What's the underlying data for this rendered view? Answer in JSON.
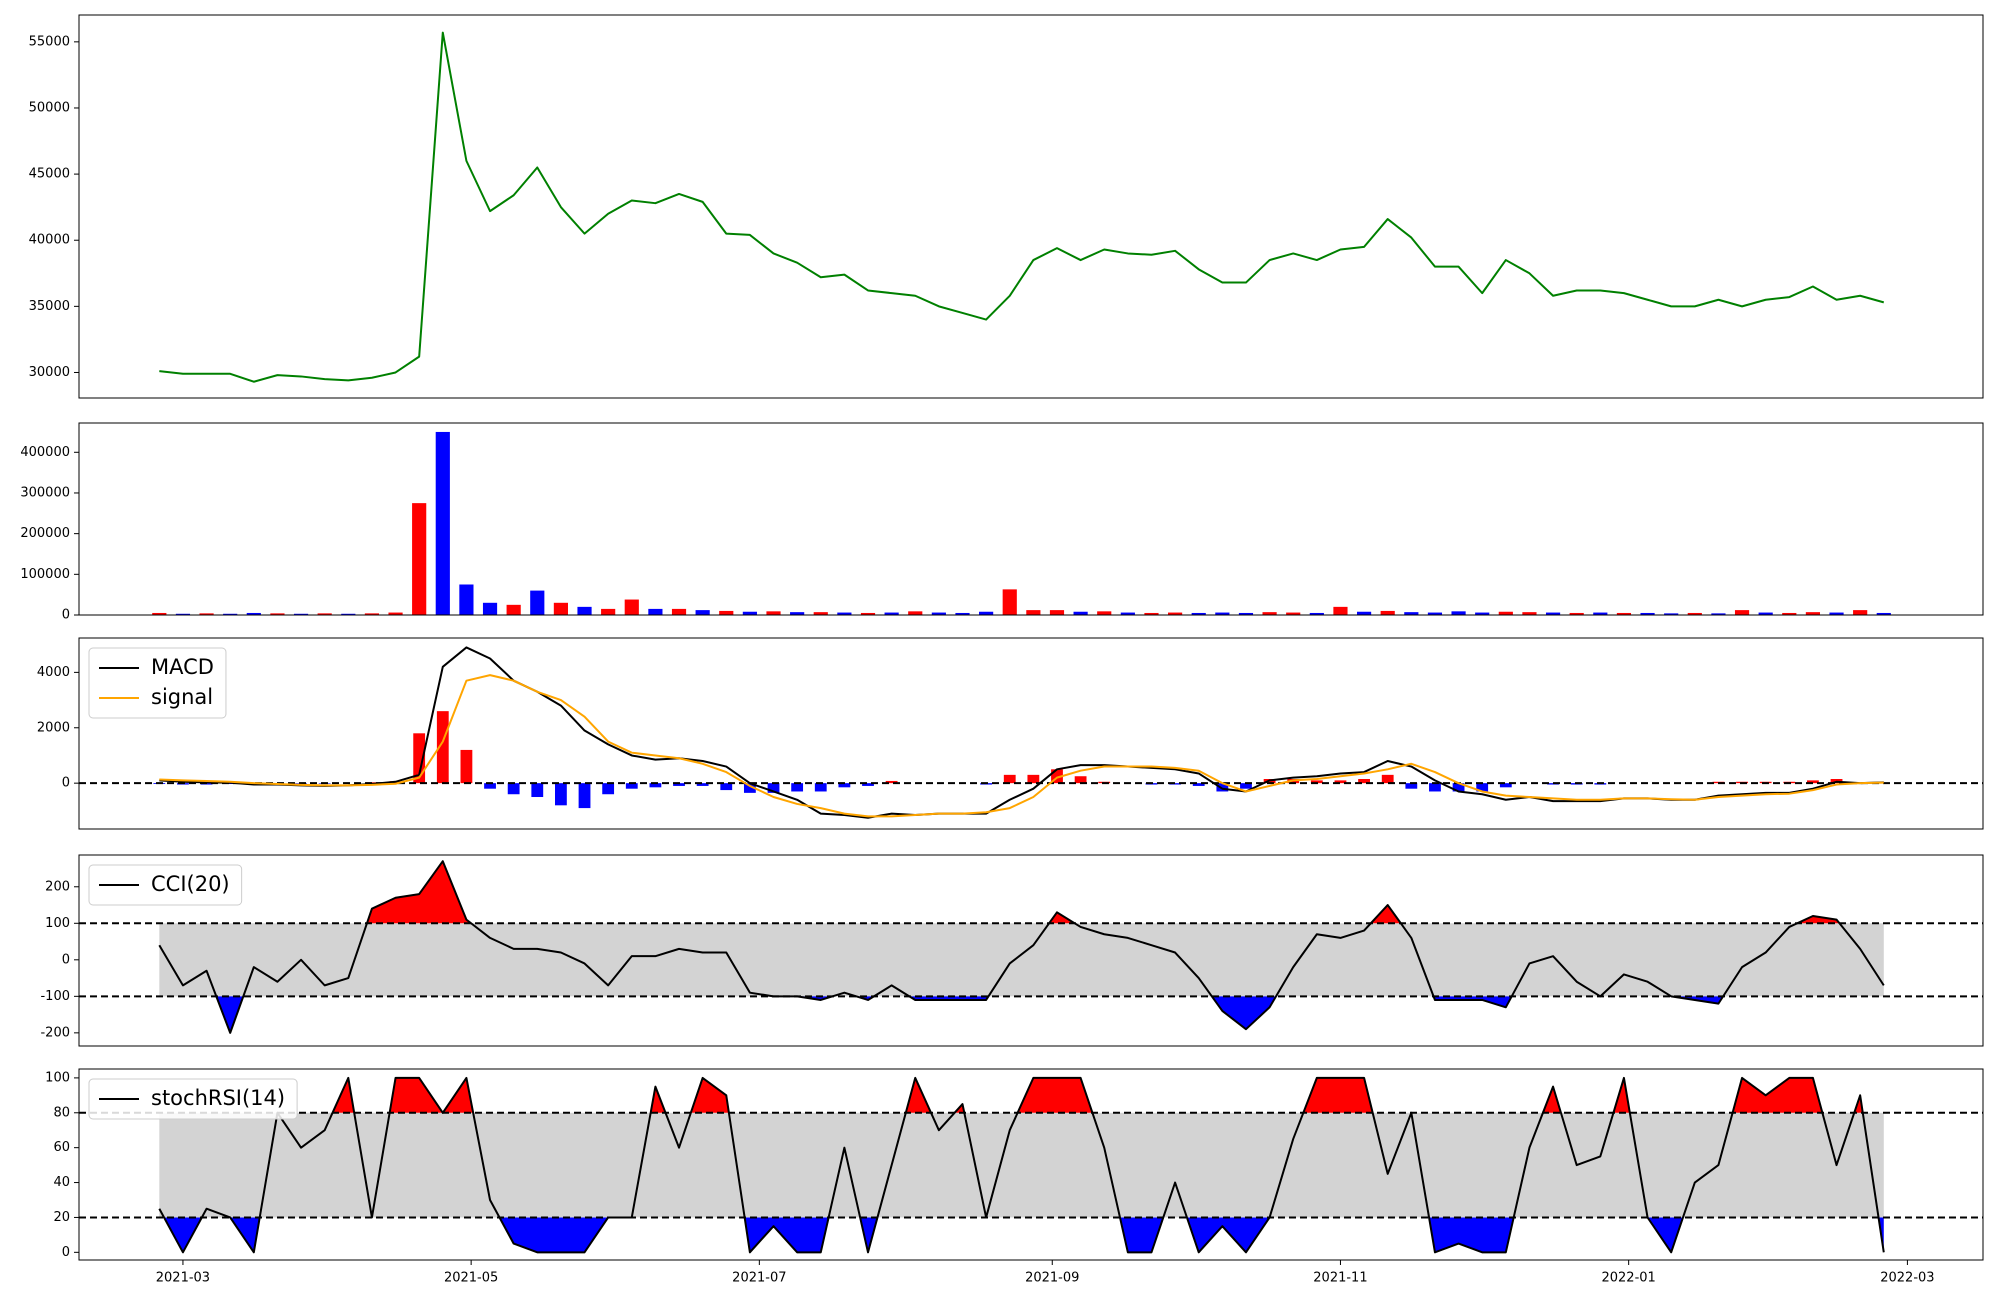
{
  "chart_data": [
    {
      "type": "line",
      "series": [
        {
          "color": "green",
          "values": [
            30100,
            29900,
            29900,
            29900,
            29300,
            29800,
            29700,
            29500,
            29400,
            29600,
            30000,
            31200,
            55700,
            46000,
            42200,
            43400,
            45500,
            42500,
            40500,
            42000,
            43000,
            42800,
            43500,
            42900,
            40500,
            40400,
            39000,
            38300,
            37200,
            37400,
            36200,
            36000,
            35800,
            35000,
            34500,
            34000,
            35800,
            38500,
            39400,
            38500,
            39300,
            39000,
            38900,
            39200,
            37800,
            36800,
            36800,
            38500,
            39000,
            38500,
            39300,
            39500,
            41600,
            40200,
            38000,
            38000,
            36000,
            38500,
            37500,
            35800,
            36200,
            36200,
            36000,
            35500,
            35000,
            35000,
            35500,
            35000,
            35500,
            35700,
            36500,
            35500,
            35800,
            35300
          ]
        }
      ],
      "ylim": [
        28070,
        57030
      ],
      "yticks": [
        30000,
        35000,
        40000,
        45000,
        50000,
        55000
      ]
    },
    {
      "type": "bar",
      "values": [
        5000,
        3000,
        4000,
        3000,
        5000,
        4000,
        3000,
        4000,
        3000,
        4000,
        6000,
        275000,
        450000,
        75000,
        30000,
        25000,
        60000,
        30000,
        20000,
        15000,
        38000,
        15000,
        15000,
        12000,
        10000,
        8000,
        9000,
        7000,
        7000,
        6000,
        5000,
        6000,
        9000,
        6000,
        5000,
        8000,
        63000,
        12000,
        12000,
        8000,
        9000,
        6000,
        5000,
        6000,
        5000,
        6000,
        5000,
        7000,
        6000,
        5000,
        20000,
        8000,
        10000,
        7000,
        6000,
        9000,
        6000,
        8000,
        7000,
        6000,
        5000,
        6000,
        5000,
        5000,
        4000,
        5000,
        4000,
        12000,
        6000,
        5000,
        7000,
        6000,
        12000,
        5000
      ],
      "colors": [
        "red",
        "blue",
        "red",
        "blue",
        "blue",
        "red",
        "blue",
        "red",
        "blue",
        "red",
        "red",
        "red",
        "blue",
        "blue",
        "blue",
        "red",
        "blue",
        "red",
        "blue",
        "red",
        "red",
        "blue",
        "red",
        "blue",
        "red",
        "blue",
        "red",
        "blue",
        "red",
        "blue",
        "red",
        "blue",
        "red",
        "blue",
        "blue",
        "blue",
        "red",
        "red",
        "red",
        "blue",
        "red",
        "blue",
        "red",
        "red",
        "blue",
        "blue",
        "blue",
        "red",
        "red",
        "blue",
        "red",
        "blue",
        "red",
        "blue",
        "blue",
        "blue",
        "blue",
        "red",
        "red",
        "blue",
        "red",
        "blue",
        "red",
        "blue",
        "blue",
        "red",
        "blue",
        "red",
        "blue",
        "red",
        "red",
        "blue",
        "red",
        "blue"
      ],
      "ylim": [
        0,
        472000
      ],
      "yticks": [
        0,
        100000,
        200000,
        300000,
        400000
      ]
    },
    {
      "type": "macd",
      "series": [
        {
          "name": "MACD",
          "color": "black",
          "values": [
            100,
            50,
            30,
            20,
            -50,
            -50,
            -80,
            -100,
            -80,
            -30,
            50,
            300,
            4200,
            4900,
            4500,
            3700,
            3300,
            2800,
            1900,
            1400,
            1000,
            850,
            900,
            800,
            600,
            0,
            -300,
            -600,
            -1100,
            -1150,
            -1250,
            -1100,
            -1150,
            -1100,
            -1100,
            -1100,
            -600,
            -200,
            500,
            650,
            650,
            600,
            550,
            500,
            350,
            -200,
            -300,
            100,
            200,
            250,
            350,
            400,
            800,
            600,
            100,
            -300,
            -400,
            -600,
            -500,
            -650,
            -650,
            -650,
            -550,
            -550,
            -600,
            -600,
            -450,
            -400,
            -350,
            -350,
            -200,
            50,
            0,
            30
          ]
        },
        {
          "name": "signal",
          "color": "orange",
          "values": [
            130,
            100,
            80,
            50,
            0,
            -30,
            -60,
            -80,
            -80,
            -60,
            -20,
            200,
            1500,
            3700,
            3900,
            3700,
            3300,
            3000,
            2400,
            1500,
            1100,
            1000,
            900,
            700,
            400,
            -100,
            -500,
            -750,
            -900,
            -1100,
            -1200,
            -1200,
            -1150,
            -1100,
            -1100,
            -1050,
            -900,
            -500,
            200,
            450,
            600,
            600,
            600,
            550,
            450,
            0,
            -300,
            -100,
            100,
            150,
            250,
            350,
            500,
            700,
            400,
            0,
            -300,
            -450,
            -500,
            -550,
            -600,
            -600,
            -550,
            -550,
            -580,
            -600,
            -500,
            -450,
            -400,
            -380,
            -250,
            -50,
            0,
            20
          ]
        }
      ],
      "histogram": {
        "values": [
          -30,
          -50,
          -50,
          -30,
          -50,
          -20,
          -20,
          -20,
          0,
          30,
          70,
          1800,
          2600,
          1200,
          -200,
          -400,
          -500,
          -800,
          -900,
          -400,
          -200,
          -150,
          -100,
          -100,
          -250,
          -350,
          -350,
          -300,
          -300,
          -150,
          -100,
          80,
          0,
          0,
          0,
          -50,
          300,
          300,
          500,
          250,
          50,
          0,
          -50,
          -50,
          -100,
          -300,
          -200,
          150,
          150,
          100,
          100,
          150,
          300,
          -200,
          -300,
          -300,
          -300,
          -150,
          0,
          -50,
          -50,
          -50,
          0,
          0,
          0,
          0,
          50,
          50,
          50,
          50,
          100,
          150,
          0,
          10
        ],
        "pos_color": "red",
        "neg_color": "blue"
      },
      "hlines": [
        0
      ],
      "ylim": [
        -1655,
        5241
      ],
      "yticks": [
        0,
        2000,
        4000
      ],
      "legend": "upper left"
    },
    {
      "type": "band",
      "series": [
        {
          "name": "CCI(20)",
          "color": "black",
          "values": [
            40,
            -70,
            -30,
            -200,
            -20,
            -60,
            0,
            -70,
            -50,
            140,
            170,
            180,
            270,
            110,
            60,
            30,
            30,
            20,
            -10,
            -70,
            10,
            10,
            30,
            20,
            20,
            -90,
            -100,
            -100,
            -110,
            -90,
            -110,
            -70,
            -110,
            -110,
            -110,
            -110,
            -10,
            40,
            130,
            90,
            70,
            60,
            40,
            20,
            -50,
            -140,
            -190,
            -130,
            -20,
            70,
            60,
            80,
            150,
            60,
            -110,
            -110,
            -110,
            -130,
            -10,
            10,
            -60,
            -100,
            -40,
            -60,
            -100,
            -110,
            -120,
            -20,
            20,
            90,
            120,
            110,
            30,
            -70
          ]
        }
      ],
      "hlines": [
        100,
        -100
      ],
      "band_color": "lightgray",
      "above_color": "red",
      "below_color": "blue",
      "ylim": [
        -236,
        287
      ],
      "yticks": [
        -200,
        -100,
        0,
        100,
        200
      ],
      "legend": "upper left"
    },
    {
      "type": "band",
      "series": [
        {
          "name": "stochRSI(14)",
          "color": "black",
          "values": [
            25,
            0,
            25,
            20,
            0,
            80,
            60,
            70,
            100,
            20,
            100,
            100,
            80,
            100,
            30,
            5,
            0,
            0,
            0,
            20,
            20,
            95,
            60,
            100,
            90,
            0,
            15,
            0,
            0,
            60,
            0,
            50,
            100,
            70,
            85,
            20,
            70,
            100,
            100,
            100,
            60,
            0,
            0,
            40,
            0,
            15,
            0,
            20,
            65,
            100,
            100,
            100,
            45,
            80,
            0,
            5,
            0,
            0,
            60,
            95,
            50,
            55,
            100,
            20,
            0,
            40,
            50,
            100,
            90,
            100,
            100,
            50,
            90,
            0
          ]
        }
      ],
      "hlines": [
        80,
        20
      ],
      "band_color": "lightgray",
      "above_color": "red",
      "below_color": "blue",
      "ylim": [
        -4.4,
        105.1
      ],
      "yticks": [
        0,
        20,
        40,
        60,
        80,
        100
      ],
      "legend": "upper left",
      "xlim": [
        -3.4,
        77.2
      ],
      "xticks": [
        {
          "value": 1,
          "label": "2021-03"
        },
        {
          "value": 13.2,
          "label": "2021-05"
        },
        {
          "value": 25.4,
          "label": "2021-07"
        },
        {
          "value": 37.8,
          "label": "2021-09"
        },
        {
          "value": 50,
          "label": "2021-11"
        },
        {
          "value": 62.2,
          "label": "2022-01"
        },
        {
          "value": 74,
          "label": "2022-03"
        }
      ]
    }
  ]
}
